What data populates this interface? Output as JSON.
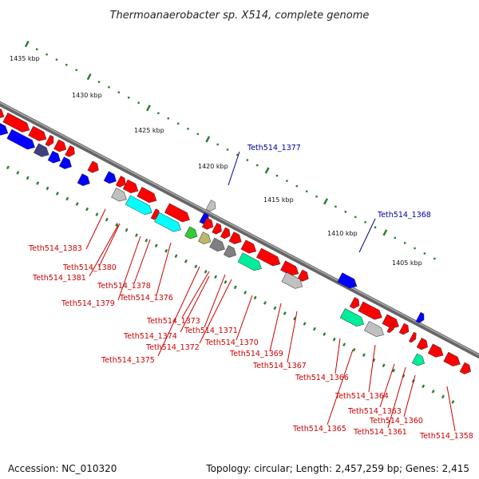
{
  "title": "Thermoanaerobacter sp. X514, complete genome",
  "footer": {
    "accession": "Accession: NC_010320",
    "stats": "Topology: circular; Length: 2,457,259 bp; Genes: 2,415"
  },
  "colors": {
    "backbone": "#888888",
    "tick": "#2e7d32",
    "label_red": "#cc0000",
    "label_blue": "#000099",
    "cds": "#ff0000",
    "blue_gene": "#0000ff",
    "cyan_gene": "#00ffff",
    "green_gene": "#33cc33",
    "teal_gene": "#00ee99",
    "gray_gene": "#c0c0c0",
    "darkgray_gene": "#808080",
    "olive_gene": "#bdb76b",
    "navy_gene": "#404080"
  },
  "scale": {
    "unit": "kbp",
    "ticks": [
      {
        "label": "1435 kbp"
      },
      {
        "label": "1430 kbp"
      },
      {
        "label": "1425 kbp"
      },
      {
        "label": "1420 kbp"
      },
      {
        "label": "1415 kbp"
      },
      {
        "label": "1410 kbp"
      },
      {
        "label": "1405 kbp"
      }
    ]
  },
  "gene_labels": [
    {
      "text": "Teth514_1377",
      "color": "blue"
    },
    {
      "text": "Teth514_1368",
      "color": "blue"
    },
    {
      "text": "Teth514_1383",
      "color": "red"
    },
    {
      "text": "Teth514_1380",
      "color": "red"
    },
    {
      "text": "Teth514_1381",
      "color": "red"
    },
    {
      "text": "Teth514_1378",
      "color": "red"
    },
    {
      "text": "Teth514_1379",
      "color": "red"
    },
    {
      "text": "Teth514_1376",
      "color": "red"
    },
    {
      "text": "Teth514_1373",
      "color": "red"
    },
    {
      "text": "Teth514_1374",
      "color": "red"
    },
    {
      "text": "Teth514_1371",
      "color": "red"
    },
    {
      "text": "Teth514_1372",
      "color": "red"
    },
    {
      "text": "Teth514_1370",
      "color": "red"
    },
    {
      "text": "Teth514_1375",
      "color": "red"
    },
    {
      "text": "Teth514_1369",
      "color": "red"
    },
    {
      "text": "Teth514_1367",
      "color": "red"
    },
    {
      "text": "Teth514_1366",
      "color": "red"
    },
    {
      "text": "Teth514_1364",
      "color": "red"
    },
    {
      "text": "Teth514_1363",
      "color": "red"
    },
    {
      "text": "Teth514_1360",
      "color": "red"
    },
    {
      "text": "Teth514_1365",
      "color": "red"
    },
    {
      "text": "Teth514_1361",
      "color": "red"
    },
    {
      "text": "Teth514_1358",
      "color": "red"
    }
  ]
}
